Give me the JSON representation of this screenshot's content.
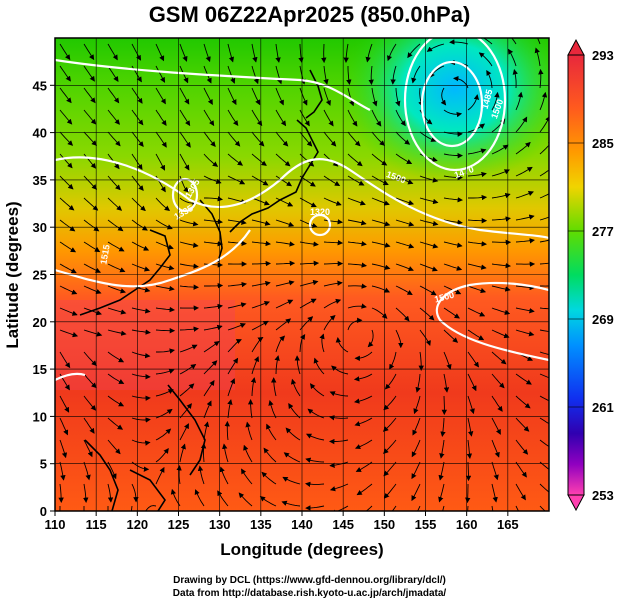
{
  "title": "GSM 06Z22Apr2025 (850.0hPa)",
  "axes": {
    "xlabel": "Longitude (degrees)",
    "ylabel": "Latitude  (degrees)",
    "xticks": [
      "110",
      "115",
      "120",
      "125",
      "130",
      "135",
      "140",
      "145",
      "150",
      "155",
      "160",
      "165"
    ],
    "yticks": [
      "0",
      "5",
      "10",
      "15",
      "20",
      "25",
      "30",
      "35",
      "40",
      "45"
    ]
  },
  "colorbar": {
    "labels": [
      "293",
      "285",
      "277",
      "269",
      "261",
      "253"
    ],
    "colors": [
      "#d81b3c",
      "#ff4a1f",
      "#ff8c00",
      "#ffc400",
      "#c8ea00",
      "#2ed800",
      "#00e0c0",
      "#00a0ff",
      "#0040ff",
      "#2000c0",
      "#a000c0",
      "#ff40b0"
    ]
  },
  "contours": {
    "labels": [
      "1305",
      "1320",
      "1335",
      "1500",
      "1500",
      "1470",
      "1485",
      "1500",
      "1515"
    ]
  },
  "credits": {
    "line1": "Drawing by DCL (https://www.gfd-dennou.org/library/dcl/)",
    "line2": "Data from http://database.rish.kyoto-u.ac.jp/arch/jmadata/"
  }
}
